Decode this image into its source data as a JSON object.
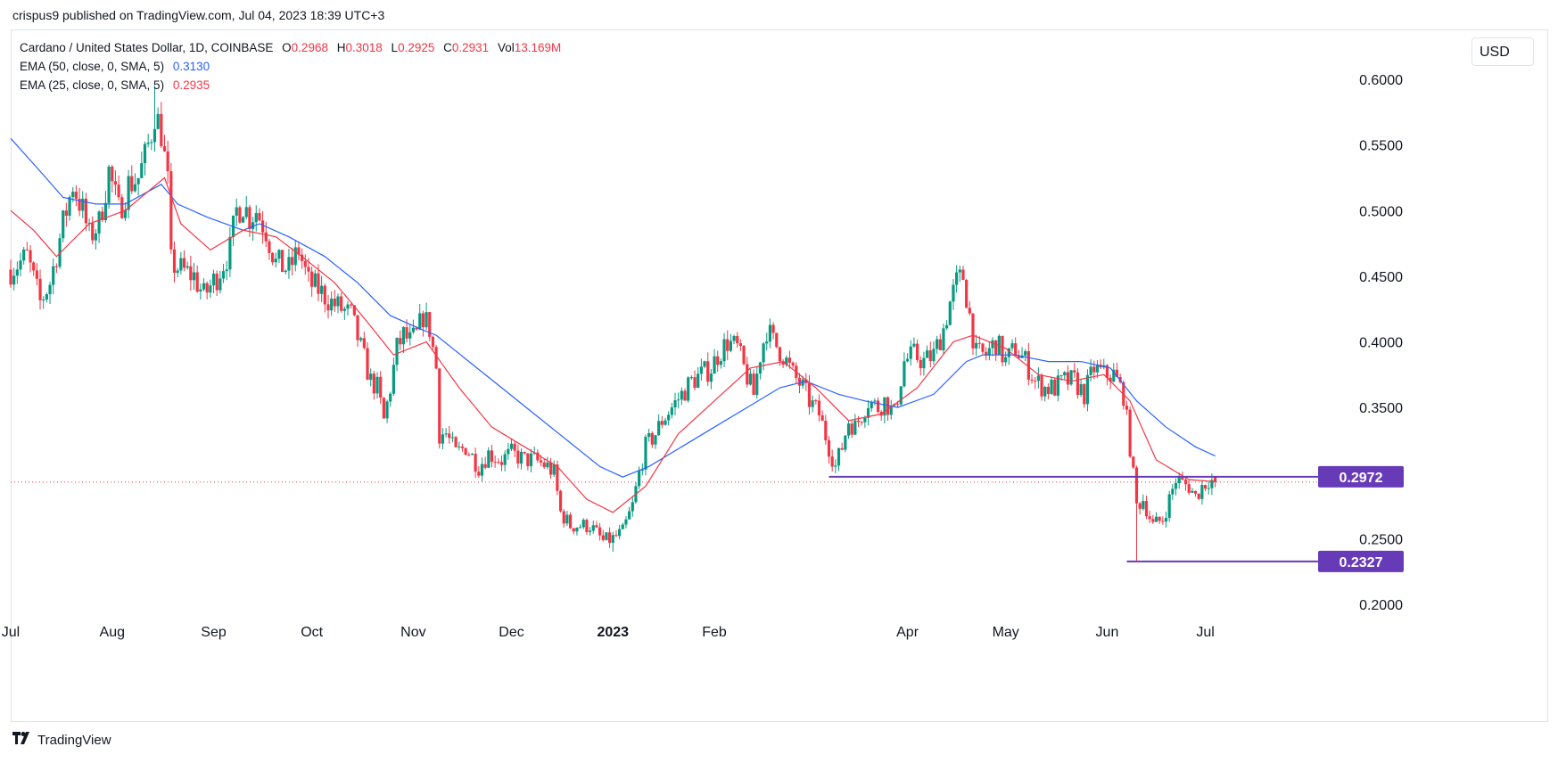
{
  "header": {
    "publisher_line": "crispus9 published on TradingView.com, Jul 04, 2023 18:39 UTC+3"
  },
  "legend": {
    "symbol": "Cardano / United States Dollar, 1D, COINBASE",
    "ohlc": [
      {
        "k": "O",
        "v": "0.2968"
      },
      {
        "k": "H",
        "v": "0.3018"
      },
      {
        "k": "L",
        "v": "0.2925"
      },
      {
        "k": "C",
        "v": "0.2931"
      },
      {
        "k": "Vol",
        "v": "13.169M"
      }
    ],
    "ema50_label": "EMA (50, close, 0, SMA, 5)",
    "ema50_value": "0.3130",
    "ema25_label": "EMA (25, close, 0, SMA, 5)",
    "ema25_value": "0.2935"
  },
  "currency": "USD",
  "footer": {
    "brand": "TradingView"
  },
  "colors": {
    "up": "#089981",
    "down": "#f23645",
    "ema50": "#2962ff",
    "ema25": "#f23645",
    "level": "#673ab7",
    "price_line": "#f23645"
  },
  "chart_data": {
    "type": "candlestick",
    "title": "Cardano / United States Dollar, 1D, COINBASE",
    "y_ticks": [
      "0.6000",
      "0.5500",
      "0.5000",
      "0.4500",
      "0.4000",
      "0.3500",
      "0.3000",
      "0.2500",
      "0.2000"
    ],
    "ylim": [
      0.19,
      0.62
    ],
    "x_ticks": [
      {
        "label": "Jul",
        "date": "2022-07-01"
      },
      {
        "label": "Aug",
        "date": "2022-08-01"
      },
      {
        "label": "Sep",
        "date": "2022-09-01"
      },
      {
        "label": "Oct",
        "date": "2022-10-01"
      },
      {
        "label": "Nov",
        "date": "2022-11-01"
      },
      {
        "label": "Dec",
        "date": "2022-12-01"
      },
      {
        "label": "2023",
        "date": "2023-01-01",
        "bold": true
      },
      {
        "label": "Feb",
        "date": "2023-02-01"
      },
      {
        "label": "Apr",
        "date": "2023-04-01"
      },
      {
        "label": "May",
        "date": "2023-05-01"
      },
      {
        "label": "Jun",
        "date": "2023-06-01"
      },
      {
        "label": "Jul",
        "date": "2023-07-01"
      }
    ],
    "xlim": [
      "2022-07-01",
      "2023-08-05"
    ],
    "price_anchors": [
      [
        "2022-07-01",
        0.455
      ],
      [
        "2022-07-06",
        0.465
      ],
      [
        "2022-07-10",
        0.43
      ],
      [
        "2022-07-13",
        0.445
      ],
      [
        "2022-07-17",
        0.49
      ],
      [
        "2022-07-20",
        0.52
      ],
      [
        "2022-07-23",
        0.5
      ],
      [
        "2022-07-25",
        0.48
      ],
      [
        "2022-07-28",
        0.49
      ],
      [
        "2022-07-31",
        0.53
      ],
      [
        "2022-08-03",
        0.5
      ],
      [
        "2022-08-06",
        0.52
      ],
      [
        "2022-08-09",
        0.525
      ],
      [
        "2022-08-11",
        0.54
      ],
      [
        "2022-08-13",
        0.56
      ],
      [
        "2022-08-14",
        0.575
      ],
      [
        "2022-08-16",
        0.56
      ],
      [
        "2022-08-18",
        0.52
      ],
      [
        "2022-08-19",
        0.46
      ],
      [
        "2022-08-22",
        0.455
      ],
      [
        "2022-08-26",
        0.45
      ],
      [
        "2022-08-29",
        0.435
      ],
      [
        "2022-09-02",
        0.45
      ],
      [
        "2022-09-06",
        0.47
      ],
      [
        "2022-09-08",
        0.5
      ],
      [
        "2022-09-10",
        0.505
      ],
      [
        "2022-09-12",
        0.495
      ],
      [
        "2022-09-14",
        0.5
      ],
      [
        "2022-09-17",
        0.485
      ],
      [
        "2022-09-20",
        0.46
      ],
      [
        "2022-09-24",
        0.455
      ],
      [
        "2022-09-27",
        0.47
      ],
      [
        "2022-09-30",
        0.445
      ],
      [
        "2022-10-03",
        0.44
      ],
      [
        "2022-10-07",
        0.43
      ],
      [
        "2022-10-10",
        0.425
      ],
      [
        "2022-10-13",
        0.42
      ],
      [
        "2022-10-16",
        0.395
      ],
      [
        "2022-10-19",
        0.37
      ],
      [
        "2022-10-21",
        0.365
      ],
      [
        "2022-10-23",
        0.34
      ],
      [
        "2022-10-25",
        0.365
      ],
      [
        "2022-10-27",
        0.395
      ],
      [
        "2022-10-29",
        0.405
      ],
      [
        "2022-10-31",
        0.4
      ],
      [
        "2022-11-02",
        0.405
      ],
      [
        "2022-11-04",
        0.42
      ],
      [
        "2022-11-06",
        0.41
      ],
      [
        "2022-11-08",
        0.38
      ],
      [
        "2022-11-09",
        0.33
      ],
      [
        "2022-11-11",
        0.33
      ],
      [
        "2022-11-14",
        0.315
      ],
      [
        "2022-11-17",
        0.32
      ],
      [
        "2022-11-21",
        0.305
      ],
      [
        "2022-11-24",
        0.315
      ],
      [
        "2022-11-28",
        0.31
      ],
      [
        "2022-12-01",
        0.315
      ],
      [
        "2022-12-05",
        0.31
      ],
      [
        "2022-12-08",
        0.31
      ],
      [
        "2022-12-12",
        0.305
      ],
      [
        "2022-12-14",
        0.3
      ],
      [
        "2022-12-16",
        0.27
      ],
      [
        "2022-12-19",
        0.26
      ],
      [
        "2022-12-22",
        0.26
      ],
      [
        "2022-12-25",
        0.26
      ],
      [
        "2022-12-29",
        0.248
      ],
      [
        "2023-01-01",
        0.25
      ],
      [
        "2023-01-04",
        0.255
      ],
      [
        "2023-01-07",
        0.275
      ],
      [
        "2023-01-09",
        0.3
      ],
      [
        "2023-01-11",
        0.32
      ],
      [
        "2023-01-14",
        0.33
      ],
      [
        "2023-01-16",
        0.34
      ],
      [
        "2023-01-19",
        0.35
      ],
      [
        "2023-01-22",
        0.36
      ],
      [
        "2023-01-25",
        0.37
      ],
      [
        "2023-01-28",
        0.375
      ],
      [
        "2023-01-31",
        0.38
      ],
      [
        "2023-02-02",
        0.39
      ],
      [
        "2023-02-05",
        0.4
      ],
      [
        "2023-02-08",
        0.395
      ],
      [
        "2023-02-10",
        0.38
      ],
      [
        "2023-02-13",
        0.36
      ],
      [
        "2023-02-15",
        0.39
      ],
      [
        "2023-02-17",
        0.41
      ],
      [
        "2023-02-19",
        0.4
      ],
      [
        "2023-02-22",
        0.39
      ],
      [
        "2023-02-25",
        0.375
      ],
      [
        "2023-02-28",
        0.365
      ],
      [
        "2023-03-02",
        0.355
      ],
      [
        "2023-03-05",
        0.345
      ],
      [
        "2023-03-08",
        0.32
      ],
      [
        "2023-03-10",
        0.305
      ],
      [
        "2023-03-12",
        0.32
      ],
      [
        "2023-03-14",
        0.34
      ],
      [
        "2023-03-16",
        0.335
      ],
      [
        "2023-03-18",
        0.345
      ],
      [
        "2023-03-20",
        0.355
      ],
      [
        "2023-03-23",
        0.35
      ],
      [
        "2023-03-25",
        0.355
      ],
      [
        "2023-03-28",
        0.345
      ],
      [
        "2023-03-31",
        0.385
      ],
      [
        "2023-04-03",
        0.39
      ],
      [
        "2023-04-06",
        0.385
      ],
      [
        "2023-04-09",
        0.39
      ],
      [
        "2023-04-12",
        0.41
      ],
      [
        "2023-04-14",
        0.43
      ],
      [
        "2023-04-16",
        0.445
      ],
      [
        "2023-04-18",
        0.45
      ],
      [
        "2023-04-20",
        0.42
      ],
      [
        "2023-04-22",
        0.39
      ],
      [
        "2023-04-25",
        0.39
      ],
      [
        "2023-04-28",
        0.4
      ],
      [
        "2023-05-01",
        0.385
      ],
      [
        "2023-05-04",
        0.395
      ],
      [
        "2023-05-07",
        0.385
      ],
      [
        "2023-05-10",
        0.37
      ],
      [
        "2023-05-13",
        0.365
      ],
      [
        "2023-05-16",
        0.365
      ],
      [
        "2023-05-19",
        0.37
      ],
      [
        "2023-05-22",
        0.37
      ],
      [
        "2023-05-25",
        0.36
      ],
      [
        "2023-05-28",
        0.38
      ],
      [
        "2023-05-31",
        0.375
      ],
      [
        "2023-06-03",
        0.375
      ],
      [
        "2023-06-06",
        0.36
      ],
      [
        "2023-06-08",
        0.32
      ],
      [
        "2023-06-10",
        0.275
      ],
      [
        "2023-06-12",
        0.28
      ],
      [
        "2023-06-15",
        0.26
      ],
      [
        "2023-06-18",
        0.265
      ],
      [
        "2023-06-20",
        0.28
      ],
      [
        "2023-06-22",
        0.295
      ],
      [
        "2023-06-24",
        0.292
      ],
      [
        "2023-06-26",
        0.29
      ],
      [
        "2023-06-28",
        0.282
      ],
      [
        "2023-06-30",
        0.29
      ],
      [
        "2023-07-02",
        0.295
      ],
      [
        "2023-07-04",
        0.2931
      ]
    ],
    "ema50_series": [
      [
        "2022-07-01",
        0.555
      ],
      [
        "2022-07-10",
        0.53
      ],
      [
        "2022-07-17",
        0.51
      ],
      [
        "2022-07-27",
        0.505
      ],
      [
        "2022-08-05",
        0.505
      ],
      [
        "2022-08-16",
        0.52
      ],
      [
        "2022-08-21",
        0.505
      ],
      [
        "2022-08-30",
        0.495
      ],
      [
        "2022-09-10",
        0.485
      ],
      [
        "2022-09-15",
        0.49
      ],
      [
        "2022-09-24",
        0.48
      ],
      [
        "2022-10-05",
        0.465
      ],
      [
        "2022-10-15",
        0.445
      ],
      [
        "2022-10-25",
        0.42
      ],
      [
        "2022-11-03",
        0.41
      ],
      [
        "2022-11-08",
        0.405
      ],
      [
        "2022-11-18",
        0.385
      ],
      [
        "2022-11-28",
        0.365
      ],
      [
        "2022-12-08",
        0.345
      ],
      [
        "2022-12-18",
        0.325
      ],
      [
        "2022-12-28",
        0.305
      ],
      [
        "2023-01-04",
        0.297
      ],
      [
        "2023-01-12",
        0.305
      ],
      [
        "2023-01-22",
        0.32
      ],
      [
        "2023-02-01",
        0.335
      ],
      [
        "2023-02-11",
        0.35
      ],
      [
        "2023-02-21",
        0.365
      ],
      [
        "2023-03-01",
        0.37
      ],
      [
        "2023-03-11",
        0.36
      ],
      [
        "2023-03-19",
        0.355
      ],
      [
        "2023-03-29",
        0.35
      ],
      [
        "2023-04-09",
        0.36
      ],
      [
        "2023-04-19",
        0.385
      ],
      [
        "2023-04-24",
        0.39
      ],
      [
        "2023-05-04",
        0.39
      ],
      [
        "2023-05-14",
        0.385
      ],
      [
        "2023-05-24",
        0.385
      ],
      [
        "2023-06-02",
        0.38
      ],
      [
        "2023-06-10",
        0.355
      ],
      [
        "2023-06-19",
        0.335
      ],
      [
        "2023-06-28",
        0.32
      ],
      [
        "2023-07-04",
        0.313
      ]
    ],
    "ema25_series": [
      [
        "2022-07-01",
        0.5
      ],
      [
        "2022-07-08",
        0.485
      ],
      [
        "2022-07-15",
        0.465
      ],
      [
        "2022-07-25",
        0.49
      ],
      [
        "2022-08-05",
        0.5
      ],
      [
        "2022-08-17",
        0.525
      ],
      [
        "2022-08-22",
        0.49
      ],
      [
        "2022-08-31",
        0.47
      ],
      [
        "2022-09-10",
        0.485
      ],
      [
        "2022-09-20",
        0.48
      ],
      [
        "2022-09-28",
        0.465
      ],
      [
        "2022-10-08",
        0.445
      ],
      [
        "2022-10-18",
        0.415
      ],
      [
        "2022-10-26",
        0.39
      ],
      [
        "2022-11-05",
        0.4
      ],
      [
        "2022-11-15",
        0.365
      ],
      [
        "2022-11-25",
        0.335
      ],
      [
        "2022-12-05",
        0.32
      ],
      [
        "2022-12-15",
        0.305
      ],
      [
        "2022-12-24",
        0.28
      ],
      [
        "2023-01-01",
        0.27
      ],
      [
        "2023-01-11",
        0.29
      ],
      [
        "2023-01-21",
        0.33
      ],
      [
        "2023-02-01",
        0.355
      ],
      [
        "2023-02-12",
        0.38
      ],
      [
        "2023-02-22",
        0.385
      ],
      [
        "2023-03-04",
        0.365
      ],
      [
        "2023-03-14",
        0.34
      ],
      [
        "2023-03-24",
        0.345
      ],
      [
        "2023-04-04",
        0.365
      ],
      [
        "2023-04-15",
        0.4
      ],
      [
        "2023-04-21",
        0.405
      ],
      [
        "2023-05-01",
        0.395
      ],
      [
        "2023-05-11",
        0.375
      ],
      [
        "2023-05-21",
        0.37
      ],
      [
        "2023-05-31",
        0.375
      ],
      [
        "2023-06-08",
        0.355
      ],
      [
        "2023-06-16",
        0.31
      ],
      [
        "2023-06-26",
        0.295
      ],
      [
        "2023-07-04",
        0.2935
      ]
    ],
    "wick_extremes": [
      {
        "date": "2022-08-14",
        "high": 0.595
      },
      {
        "date": "2023-06-10",
        "low": 0.2327
      },
      {
        "date": "2023-01-01",
        "low": 0.24
      }
    ],
    "horizontal_levels": [
      {
        "value": 0.2972,
        "label": "0.2972",
        "from": "2023-03-08"
      },
      {
        "value": 0.2327,
        "label": "0.2327",
        "from": "2023-06-07"
      }
    ],
    "last_price": 0.2931
  }
}
